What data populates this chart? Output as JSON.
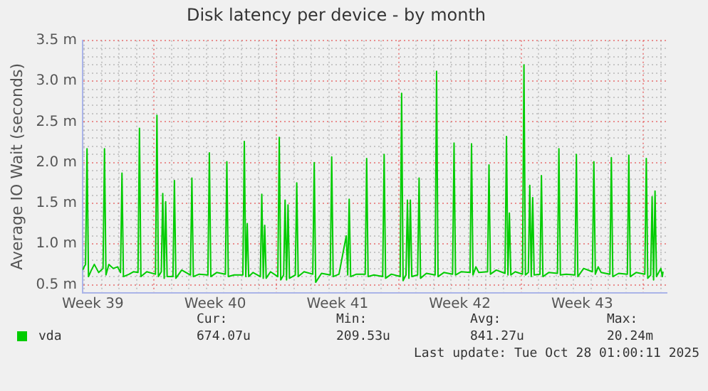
{
  "chart_data": {
    "type": "line",
    "title": "Disk latency per device - by month",
    "ylabel": "Average IO Wait (seconds)",
    "xlim": [
      "2025-09-24T22:00",
      "2025-10-28T08:00"
    ],
    "xticks": [
      {
        "value": "2025-09-25T12:00",
        "label": "Week 39"
      },
      {
        "value": "2025-10-02T12:00",
        "label": "Week 40"
      },
      {
        "value": "2025-10-09T12:00",
        "label": "Week 41"
      },
      {
        "value": "2025-10-16T12:00",
        "label": "Week 42"
      },
      {
        "value": "2025-10-23T12:00",
        "label": "Week 43"
      },
      {
        "value": "2025-09-25T00:00",
        "label": null
      },
      {
        "value": "2025-09-26T00:00",
        "label": null
      },
      {
        "value": "2025-09-27T00:00",
        "label": null
      },
      {
        "value": "2025-09-28T00:00",
        "label": null
      },
      {
        "value": "2025-09-29T00:00",
        "label": null
      },
      {
        "value": "2025-09-30T00:00",
        "label": null
      },
      {
        "value": "2025-10-01T00:00",
        "label": null
      },
      {
        "value": "2025-10-02T00:00",
        "label": null
      },
      {
        "value": "2025-10-03T00:00",
        "label": null
      },
      {
        "value": "2025-10-04T00:00",
        "label": null
      },
      {
        "value": "2025-10-05T00:00",
        "label": null
      },
      {
        "value": "2025-10-06T00:00",
        "label": null
      },
      {
        "value": "2025-10-07T00:00",
        "label": null
      },
      {
        "value": "2025-10-08T00:00",
        "label": null
      },
      {
        "value": "2025-10-09T00:00",
        "label": null
      },
      {
        "value": "2025-10-10T00:00",
        "label": null
      },
      {
        "value": "2025-10-11T00:00",
        "label": null
      },
      {
        "value": "2025-10-12T00:00",
        "label": null
      },
      {
        "value": "2025-10-13T00:00",
        "label": null
      },
      {
        "value": "2025-10-14T00:00",
        "label": null
      },
      {
        "value": "2025-10-15T00:00",
        "label": null
      },
      {
        "value": "2025-10-16T00:00",
        "label": null
      },
      {
        "value": "2025-10-17T00:00",
        "label": null
      },
      {
        "value": "2025-10-18T00:00",
        "label": null
      },
      {
        "value": "2025-10-19T00:00",
        "label": null
      },
      {
        "value": "2025-10-20T00:00",
        "label": null
      },
      {
        "value": "2025-10-21T00:00",
        "label": null
      },
      {
        "value": "2025-10-22T00:00",
        "label": null
      },
      {
        "value": "2025-10-23T00:00",
        "label": null
      },
      {
        "value": "2025-10-24T00:00",
        "label": null
      },
      {
        "value": "2025-10-25T00:00",
        "label": null
      },
      {
        "value": "2025-10-26T00:00",
        "label": null
      },
      {
        "value": "2025-10-27T00:00",
        "label": null
      },
      {
        "value": "2025-10-28T00:00",
        "label": null
      }
    ],
    "ylim": [
      0.4,
      3.5
    ],
    "yticks": [
      {
        "value": 0.5,
        "label": "0.5 m"
      },
      {
        "value": 0.6,
        "label": null
      },
      {
        "value": 0.7,
        "label": null
      },
      {
        "value": 0.8,
        "label": null
      },
      {
        "value": 0.9,
        "label": null
      },
      {
        "value": 1.0,
        "label": "1.0 m"
      },
      {
        "value": 1.1,
        "label": null
      },
      {
        "value": 1.2,
        "label": null
      },
      {
        "value": 1.3,
        "label": null
      },
      {
        "value": 1.4,
        "label": null
      },
      {
        "value": 1.5,
        "label": "1.5 m"
      },
      {
        "value": 1.6,
        "label": null
      },
      {
        "value": 1.7,
        "label": null
      },
      {
        "value": 1.8,
        "label": null
      },
      {
        "value": 1.9,
        "label": null
      },
      {
        "value": 2.0,
        "label": "2.0 m"
      },
      {
        "value": 2.1,
        "label": null
      },
      {
        "value": 2.2,
        "label": null
      },
      {
        "value": 2.3,
        "label": null
      },
      {
        "value": 2.4,
        "label": null
      },
      {
        "value": 2.5,
        "label": "2.5 m"
      },
      {
        "value": 2.6,
        "label": null
      },
      {
        "value": 2.7,
        "label": null
      },
      {
        "value": 2.8,
        "label": null
      },
      {
        "value": 2.9,
        "label": null
      },
      {
        "value": 3.0,
        "label": "3.0 m"
      },
      {
        "value": 3.1,
        "label": null
      },
      {
        "value": 3.2,
        "label": null
      },
      {
        "value": 3.3,
        "label": null
      },
      {
        "value": 3.4,
        "label": null
      },
      {
        "value": 3.5,
        "label": "3.5 m"
      }
    ],
    "grid": true,
    "legend": "bottom",
    "marker": "none",
    "line_style": "solid",
    "annotations": [
      "Cur:",
      "674.07u",
      "Min:",
      "209.53u",
      "Avg:",
      "841.27u",
      "Max:",
      "20.24m",
      "Last update: Tue Oct 28 01:00:11 2025"
    ],
    "series": [
      {
        "name": "vda",
        "color": "#00cc00",
        "x": [
          "2025-09-24T22:00",
          "2025-09-25T00:00",
          "2025-09-25T02:00",
          "2025-09-25T04:00",
          "2025-09-25T06:00",
          "2025-09-25T10:00",
          "2025-09-25T14:00",
          "2025-09-25T20:00",
          "2025-09-26T02:00",
          "2025-09-26T04:00",
          "2025-09-26T06:00",
          "2025-09-26T10:00",
          "2025-09-26T16:00",
          "2025-09-26T22:00",
          "2025-09-27T02:00",
          "2025-09-27T04:00",
          "2025-09-27T06:00",
          "2025-09-27T14:00",
          "2025-09-27T20:00",
          "2025-09-28T02:00",
          "2025-09-28T04:00",
          "2025-09-28T06:00",
          "2025-09-28T14:00",
          "2025-09-29T02:00",
          "2025-09-29T04:00",
          "2025-09-29T06:00",
          "2025-09-29T10:00",
          "2025-09-29T12:00",
          "2025-09-29T14:00",
          "2025-09-29T16:00",
          "2025-09-29T18:00",
          "2025-09-30T02:00",
          "2025-09-30T04:00",
          "2025-09-30T06:00",
          "2025-09-30T14:00",
          "2025-10-01T02:00",
          "2025-10-01T04:00",
          "2025-10-01T06:00",
          "2025-10-01T14:00",
          "2025-10-02T02:00",
          "2025-10-02T04:00",
          "2025-10-02T06:00",
          "2025-10-02T14:00",
          "2025-10-03T02:00",
          "2025-10-03T04:00",
          "2025-10-03T06:00",
          "2025-10-03T14:00",
          "2025-10-04T02:00",
          "2025-10-04T04:00",
          "2025-10-04T06:00",
          "2025-10-04T08:00",
          "2025-10-04T10:00",
          "2025-10-04T16:00",
          "2025-10-05T02:00",
          "2025-10-05T04:00",
          "2025-10-05T06:00",
          "2025-10-05T08:00",
          "2025-10-05T10:00",
          "2025-10-05T16:00",
          "2025-10-06T02:00",
          "2025-10-06T04:00",
          "2025-10-06T06:00",
          "2025-10-06T10:00",
          "2025-10-06T12:00",
          "2025-10-06T14:00",
          "2025-10-06T16:00",
          "2025-10-06T18:00",
          "2025-10-07T02:00",
          "2025-10-07T04:00",
          "2025-10-07T06:00",
          "2025-10-07T14:00",
          "2025-10-08T02:00",
          "2025-10-08T04:00",
          "2025-10-08T06:00",
          "2025-10-08T14:00",
          "2025-10-09T02:00",
          "2025-10-09T04:00",
          "2025-10-09T06:00",
          "2025-10-09T14:00",
          "2025-10-10T00:00",
          "2025-10-10T02:00",
          "2025-10-10T04:00",
          "2025-10-10T06:00",
          "2025-10-10T14:00",
          "2025-10-11T02:00",
          "2025-10-11T04:00",
          "2025-10-11T06:00",
          "2025-10-11T14:00",
          "2025-10-12T02:00",
          "2025-10-12T04:00",
          "2025-10-12T06:00",
          "2025-10-12T14:00",
          "2025-10-13T02:00",
          "2025-10-13T04:00",
          "2025-10-13T06:00",
          "2025-10-13T10:00",
          "2025-10-13T12:00",
          "2025-10-13T14:00",
          "2025-10-13T16:00",
          "2025-10-13T18:00",
          "2025-10-14T02:00",
          "2025-10-14T04:00",
          "2025-10-14T06:00",
          "2025-10-14T14:00",
          "2025-10-15T02:00",
          "2025-10-15T04:00",
          "2025-10-15T06:00",
          "2025-10-15T14:00",
          "2025-10-16T02:00",
          "2025-10-16T04:00",
          "2025-10-16T06:00",
          "2025-10-16T14:00",
          "2025-10-17T02:00",
          "2025-10-17T04:00",
          "2025-10-17T06:00",
          "2025-10-17T10:00",
          "2025-10-17T14:00",
          "2025-10-18T02:00",
          "2025-10-18T04:00",
          "2025-10-18T06:00",
          "2025-10-18T14:00",
          "2025-10-19T02:00",
          "2025-10-19T04:00",
          "2025-10-19T06:00",
          "2025-10-19T08:00",
          "2025-10-19T10:00",
          "2025-10-19T16:00",
          "2025-10-20T02:00",
          "2025-10-20T04:00",
          "2025-10-20T06:00",
          "2025-10-20T10:00",
          "2025-10-20T12:00",
          "2025-10-20T14:00",
          "2025-10-20T16:00",
          "2025-10-20T18:00",
          "2025-10-21T02:00",
          "2025-10-21T04:00",
          "2025-10-21T06:00",
          "2025-10-21T14:00",
          "2025-10-22T02:00",
          "2025-10-22T04:00",
          "2025-10-22T06:00",
          "2025-10-22T14:00",
          "2025-10-23T02:00",
          "2025-10-23T04:00",
          "2025-10-23T06:00",
          "2025-10-23T14:00",
          "2025-10-24T02:00",
          "2025-10-24T04:00",
          "2025-10-24T06:00",
          "2025-10-24T10:00",
          "2025-10-24T14:00",
          "2025-10-25T02:00",
          "2025-10-25T04:00",
          "2025-10-25T06:00",
          "2025-10-25T14:00",
          "2025-10-26T02:00",
          "2025-10-26T04:00",
          "2025-10-26T06:00",
          "2025-10-26T14:00",
          "2025-10-27T02:00",
          "2025-10-27T04:00",
          "2025-10-27T06:00",
          "2025-10-27T10:00",
          "2025-10-27T12:00",
          "2025-10-27T14:00",
          "2025-10-27T16:00",
          "2025-10-27T18:00",
          "2025-10-28T00:00",
          "2025-10-28T02:00",
          "2025-10-28T03:00"
        ],
        "values": [
          0.68,
          0.72,
          0.75,
          2.17,
          0.6,
          0.68,
          0.75,
          0.65,
          0.7,
          2.17,
          0.62,
          0.75,
          0.7,
          0.72,
          0.65,
          1.87,
          0.6,
          0.63,
          0.66,
          0.65,
          2.42,
          0.6,
          0.66,
          0.63,
          2.58,
          0.6,
          0.66,
          1.62,
          0.58,
          1.52,
          0.6,
          0.6,
          1.78,
          0.58,
          0.68,
          0.62,
          1.81,
          0.6,
          0.63,
          0.62,
          2.12,
          0.6,
          0.65,
          0.63,
          2.01,
          0.6,
          0.62,
          0.62,
          2.26,
          0.6,
          1.25,
          0.6,
          0.65,
          0.6,
          1.61,
          0.58,
          1.23,
          0.58,
          0.66,
          0.6,
          2.31,
          0.56,
          0.62,
          1.54,
          0.56,
          1.48,
          0.58,
          0.62,
          1.75,
          0.6,
          0.66,
          0.63,
          2.0,
          0.53,
          0.64,
          0.62,
          2.07,
          0.6,
          0.63,
          1.1,
          0.62,
          1.55,
          0.6,
          0.63,
          0.63,
          2.05,
          0.6,
          0.62,
          0.6,
          2.1,
          0.58,
          0.63,
          0.6,
          2.85,
          0.55,
          0.62,
          1.54,
          0.58,
          1.54,
          0.6,
          0.62,
          1.81,
          0.58,
          0.64,
          0.62,
          3.12,
          0.6,
          0.65,
          0.63,
          2.24,
          0.62,
          0.66,
          0.65,
          2.23,
          0.62,
          0.72,
          0.65,
          0.66,
          1.97,
          0.63,
          0.68,
          0.64,
          2.32,
          0.62,
          1.38,
          0.62,
          0.66,
          0.63,
          3.2,
          0.62,
          0.65,
          1.72,
          0.6,
          1.57,
          0.62,
          0.63,
          1.84,
          0.6,
          0.65,
          0.64,
          2.17,
          0.62,
          0.63,
          0.62,
          2.1,
          0.6,
          0.7,
          0.66,
          2.01,
          0.63,
          0.72,
          0.65,
          0.63,
          2.06,
          0.6,
          0.64,
          0.63,
          2.09,
          0.6,
          0.65,
          0.63,
          2.05,
          0.58,
          0.62,
          1.58,
          0.56,
          1.65,
          0.6,
          0.7,
          0.6,
          0.66
        ]
      }
    ]
  }
}
